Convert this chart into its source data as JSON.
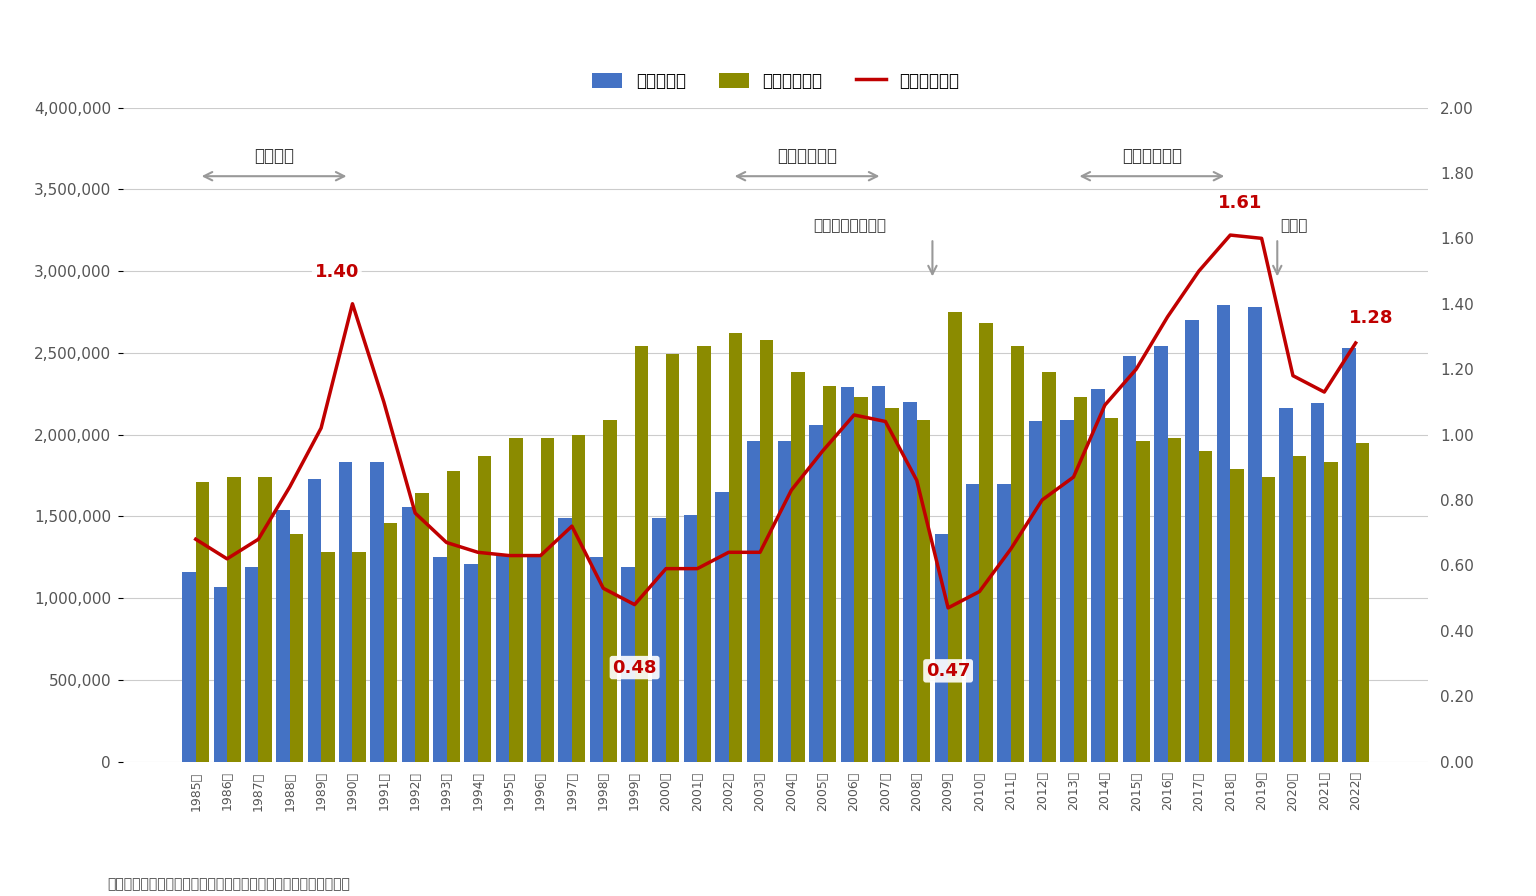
{
  "years": [
    1985,
    1986,
    1987,
    1988,
    1989,
    1990,
    1991,
    1992,
    1993,
    1994,
    1995,
    1996,
    1997,
    1998,
    1999,
    2000,
    2001,
    2002,
    2003,
    2004,
    2005,
    2006,
    2007,
    2008,
    2009,
    2010,
    2011,
    2012,
    2013,
    2014,
    2015,
    2016,
    2017,
    2018,
    2019,
    2020,
    2021,
    2022
  ],
  "kyujin": [
    1160000,
    1070000,
    1190000,
    1540000,
    1730000,
    1830000,
    1830000,
    1560000,
    1250000,
    1210000,
    1260000,
    1270000,
    1490000,
    1250000,
    1190000,
    1490000,
    1510000,
    1650000,
    1960000,
    1960000,
    2060000,
    2290000,
    2300000,
    2200000,
    1390000,
    1700000,
    1700000,
    2080000,
    2090000,
    2280000,
    2480000,
    2540000,
    2700000,
    2790000,
    2780000,
    2160000,
    2190000,
    2530000
  ],
  "kyushokusha": [
    1710000,
    1740000,
    1740000,
    1390000,
    1280000,
    1280000,
    1460000,
    1640000,
    1780000,
    1870000,
    1980000,
    1980000,
    2000000,
    2090000,
    2540000,
    2490000,
    2540000,
    2620000,
    2580000,
    2380000,
    2300000,
    2230000,
    2160000,
    2090000,
    2750000,
    2680000,
    2540000,
    2380000,
    2230000,
    2100000,
    1960000,
    1980000,
    1900000,
    1790000,
    1740000,
    1870000,
    1830000,
    1950000
  ],
  "ratio": [
    0.68,
    0.62,
    0.68,
    0.84,
    1.02,
    1.4,
    1.1,
    0.76,
    0.67,
    0.64,
    0.63,
    0.63,
    0.72,
    0.53,
    0.48,
    0.59,
    0.59,
    0.64,
    0.64,
    0.83,
    0.95,
    1.06,
    1.04,
    0.86,
    0.47,
    0.52,
    0.65,
    0.8,
    0.87,
    1.09,
    1.2,
    1.36,
    1.5,
    1.61,
    1.6,
    1.18,
    1.13,
    1.28
  ],
  "bar_color_kyujin": "#4472C4",
  "bar_color_kyushokusha": "#8B8B00",
  "line_color_ratio": "#C00000",
  "bg_color": "#FFFFFF",
  "grid_color": "#CCCCCC",
  "ylim_left": [
    0,
    4000000
  ],
  "ylim_right": [
    0.0,
    2.0
  ],
  "yticks_left": [
    0,
    500000,
    1000000,
    1500000,
    2000000,
    2500000,
    3000000,
    3500000,
    4000000
  ],
  "yticks_right": [
    0.0,
    0.2,
    0.4,
    0.6,
    0.8,
    1.0,
    1.2,
    1.4,
    1.6,
    1.8,
    2.0
  ],
  "legend_labels": [
    "有効求人数",
    "有効求職者数",
    "有効求人倍率"
  ],
  "source_text": "出典「一般職業紹介状況（職業安定業務統計）」（厚生労働省）",
  "label_bubble": "バブル期",
  "label_izanami": "いざなみ景気",
  "label_abenomics": "アベノミクス",
  "label_lehman": "リーマンショック",
  "label_corona": "コロナ",
  "ratio_ann_1990": "1.40",
  "ratio_ann_1999": "0.48",
  "ratio_ann_2009": "0.47",
  "ratio_ann_2018": "1.61",
  "ratio_ann_2022": "1.28"
}
